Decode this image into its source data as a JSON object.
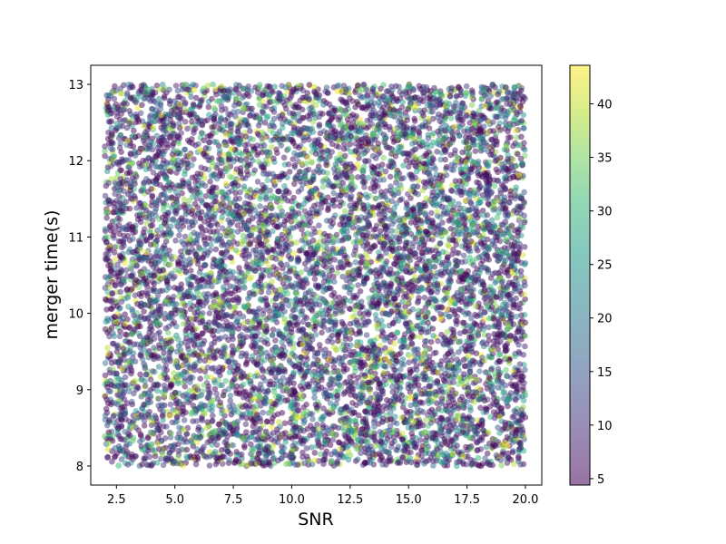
{
  "chart_data": {
    "type": "scatter",
    "xlabel": "SNR",
    "ylabel": "merger time(s)",
    "xlim": [
      1.4,
      20.7
    ],
    "ylim": [
      7.75,
      13.25
    ],
    "x_ticks": [
      {
        "value": 2.5,
        "label": "2.5"
      },
      {
        "value": 5.0,
        "label": "5.0"
      },
      {
        "value": 7.5,
        "label": "7.5"
      },
      {
        "value": 10.0,
        "label": "10.0"
      },
      {
        "value": 12.5,
        "label": "12.5"
      },
      {
        "value": 15.0,
        "label": "15.0"
      },
      {
        "value": 17.5,
        "label": "17.5"
      },
      {
        "value": 20.0,
        "label": "20.0"
      }
    ],
    "y_ticks": [
      {
        "value": 8,
        "label": "8"
      },
      {
        "value": 9,
        "label": "9"
      },
      {
        "value": 10,
        "label": "10"
      },
      {
        "value": 11,
        "label": "11"
      },
      {
        "value": 12,
        "label": "12"
      },
      {
        "value": 13,
        "label": "13"
      }
    ],
    "x_range_of_points": [
      2.0,
      20.0
    ],
    "y_range_of_points": [
      8.0,
      13.0
    ],
    "point_count_approx": 9000,
    "color_range_of_points": [
      4.4,
      43.6
    ],
    "colormap": "viridis",
    "marker_alpha": 0.5,
    "grid": false,
    "colorbar": {
      "range": [
        4.4,
        43.6
      ],
      "ticks": [
        {
          "value": 5,
          "label": "5"
        },
        {
          "value": 10,
          "label": "10"
        },
        {
          "value": 15,
          "label": "15"
        },
        {
          "value": 20,
          "label": "20"
        },
        {
          "value": 25,
          "label": "25"
        },
        {
          "value": 30,
          "label": "30"
        },
        {
          "value": 35,
          "label": "35"
        },
        {
          "value": 40,
          "label": "40"
        }
      ]
    },
    "colors": {
      "viridis_stops": [
        "#440154",
        "#482878",
        "#3e4989",
        "#31688e",
        "#26828e",
        "#1f9e89",
        "#35b779",
        "#6ece58",
        "#b5de2b",
        "#fde725"
      ]
    }
  }
}
